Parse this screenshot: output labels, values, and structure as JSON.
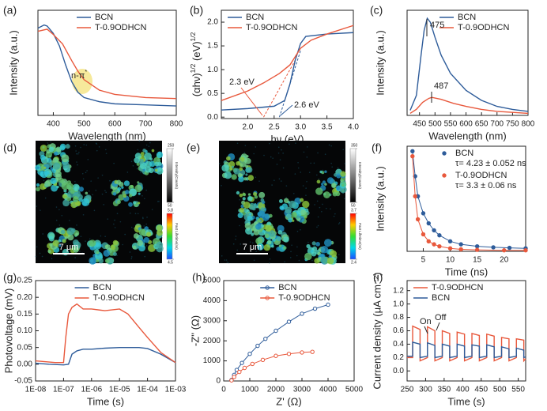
{
  "chart_data": [
    {
      "type": "line",
      "label": "(a)",
      "x_label": "Wavelength (nm)",
      "y_label": "Intensity (a.u.)",
      "xlim": [
        350,
        800
      ],
      "ylim": [
        0,
        1
      ],
      "xticks": [
        400,
        500,
        600,
        700,
        800
      ],
      "legend": "upper center",
      "highlight_color": "#f3e27a",
      "series": [
        {
          "name": "BCN",
          "color": "#2e5c9a",
          "x": [
            350,
            370,
            380,
            400,
            420,
            440,
            460,
            480,
            500,
            550,
            600,
            700,
            800
          ],
          "values": [
            0.83,
            0.86,
            0.85,
            0.78,
            0.66,
            0.48,
            0.32,
            0.22,
            0.17,
            0.13,
            0.11,
            0.1,
            0.09
          ]
        },
        {
          "name": "T-0.9ODHCN",
          "color": "#e8583c",
          "x": [
            350,
            380,
            400,
            430,
            460,
            480,
            500,
            550,
            600,
            700,
            800
          ],
          "values": [
            0.8,
            0.82,
            0.77,
            0.68,
            0.52,
            0.42,
            0.34,
            0.24,
            0.2,
            0.17,
            0.16
          ]
        }
      ],
      "annotations": [
        {
          "text": [
            "n-π",
            "*"
          ],
          "color": "#222222"
        }
      ]
    },
    {
      "type": "line",
      "label": "(b)",
      "x_label": "hν (eV)",
      "y_label": [
        "(αhν)",
        "1/2",
        " (eV)",
        "1/2"
      ],
      "xlim": [
        1.5,
        4.0
      ],
      "ylim": [
        -0.03,
        2.25
      ],
      "xticks": [
        {
          "value": 2,
          "label": "2.0"
        },
        2.5,
        {
          "value": 3,
          "label": "3.0"
        },
        3.5,
        {
          "value": 4,
          "label": "4.0"
        }
      ],
      "yticks": [
        {
          "value": 0,
          "label": "0.0"
        },
        0.5,
        {
          "value": 1,
          "label": "1.0"
        },
        1.5,
        {
          "value": 2,
          "label": "2.0"
        }
      ],
      "legend": "upper left",
      "series": [
        {
          "name": "BCN",
          "color": "#2e5c9a",
          "x": [
            1.5,
            2.0,
            2.5,
            2.7,
            2.8,
            2.9,
            3.0,
            3.1,
            3.5,
            4.0
          ],
          "values": [
            0.15,
            0.18,
            0.23,
            0.35,
            0.7,
            1.2,
            1.55,
            1.7,
            1.75,
            1.78
          ]
        },
        {
          "name": "T-0.9ODHCN",
          "color": "#e8583c",
          "x": [
            1.5,
            2.0,
            2.3,
            2.6,
            2.8,
            3.0,
            3.2,
            3.5,
            4.0
          ],
          "values": [
            0.35,
            0.55,
            0.72,
            0.92,
            1.1,
            1.45,
            1.62,
            1.75,
            1.93
          ]
        }
      ],
      "guides": [
        {
          "color": "#e8583c",
          "x": [
            2.3,
            2.9
          ],
          "values": [
            0,
            1.2
          ]
        },
        {
          "color": "#2e5c9a",
          "x": [
            2.6,
            3.0
          ],
          "values": [
            0,
            1.4
          ]
        }
      ],
      "annotations": [
        {
          "text": "2.3 eV",
          "color": "#e8583c"
        },
        {
          "text": "2.6 eV",
          "color": "#2e5c9a"
        }
      ]
    },
    {
      "type": "line",
      "label": "(c)",
      "x_label": "Wavelength (nm)",
      "y_label": "Intensity (a.u.)",
      "xlim": [
        410,
        800
      ],
      "ylim": [
        0,
        1.05
      ],
      "xticks": [
        450,
        500,
        550,
        600,
        650,
        700,
        750,
        800
      ],
      "legend": "upper right",
      "series": [
        {
          "name": "BCN",
          "color": "#2e5c9a",
          "x": [
            420,
            440,
            455,
            465,
            475,
            485,
            500,
            520,
            550,
            600,
            650,
            700,
            750,
            800
          ],
          "values": [
            0.05,
            0.2,
            0.6,
            0.85,
            0.97,
            0.93,
            0.78,
            0.6,
            0.42,
            0.25,
            0.15,
            0.09,
            0.06,
            0.04
          ]
        },
        {
          "name": "T-0.9ODHCN",
          "color": "#e8583c",
          "x": [
            420,
            440,
            460,
            480,
            490,
            520,
            560,
            600,
            650,
            700,
            800
          ],
          "values": [
            0.02,
            0.06,
            0.13,
            0.17,
            0.18,
            0.16,
            0.12,
            0.09,
            0.06,
            0.04,
            0.02
          ]
        }
      ],
      "annotations": [
        {
          "text": "475",
          "color": "#222222"
        },
        {
          "text": "487",
          "color": "#222222"
        }
      ]
    },
    {
      "type": "image",
      "label": "(d)",
      "scale_bar": "7 μm",
      "intensity_title": "Intensity(Counts)",
      "intensity_ticks": [
        250,
        50
      ],
      "lifetime_title": "Fast Lifetime(ns)",
      "lifetime_ticks": [
        5.8,
        4.5
      ]
    },
    {
      "type": "image",
      "label": "(e)",
      "scale_bar": "7 μm",
      "intensity_title": "Intensity(Counts)",
      "intensity_ticks": [
        350,
        50
      ],
      "lifetime_title": "Fast Lifetime(ns)",
      "lifetime_ticks": [
        3.7,
        2.4
      ]
    },
    {
      "type": "scatter",
      "label": "(f)",
      "x_label": "Time (ns)",
      "y_label": "Intensity (a.u.)",
      "xlim": [
        2,
        24
      ],
      "ylim": [
        0,
        1.05
      ],
      "xticks": [
        5,
        10,
        15,
        20
      ],
      "legend": "upper right",
      "markers": true,
      "series": [
        {
          "name": "BCN",
          "note": "τ= 4.23 ± 0.052 ns",
          "color": "#2e5c9a",
          "x": [
            3,
            3.5,
            4,
            5,
            6,
            7,
            8,
            10,
            12,
            15,
            18,
            21,
            24
          ],
          "values": [
            1.0,
            0.75,
            0.55,
            0.38,
            0.28,
            0.21,
            0.16,
            0.1,
            0.07,
            0.05,
            0.04,
            0.035,
            0.03
          ]
        },
        {
          "name": "T-0.9ODHCN",
          "note": "τ= 3.3 ± 0.06 ns",
          "color": "#e8583c",
          "x": [
            3,
            3.5,
            4,
            5,
            6,
            7,
            8,
            10,
            12,
            15,
            20,
            24
          ],
          "values": [
            0.95,
            0.55,
            0.32,
            0.17,
            0.1,
            0.07,
            0.05,
            0.03,
            0.02,
            0.015,
            0.01,
            0.01
          ]
        }
      ]
    },
    {
      "type": "line",
      "label": "(g)",
      "x_label": "Time (s)",
      "y_label": "Photovoltage (mV)",
      "xlog": true,
      "xlim": [
        1e-08,
        0.001
      ],
      "ylim": [
        -0.05,
        0.25
      ],
      "xticks": [
        {
          "value": 1e-08,
          "label": "1E-08"
        },
        {
          "value": 1e-07,
          "label": "1E-07"
        },
        {
          "value": 1e-06,
          "label": "1E-06"
        },
        {
          "value": 1e-05,
          "label": "1E-05"
        },
        {
          "value": 0.0001,
          "label": "1E-04"
        },
        {
          "value": 0.001,
          "label": "1E-03"
        }
      ],
      "yticks": [
        -0.05,
        {
          "value": 0,
          "label": "0.00"
        },
        0.05,
        {
          "value": 0.1,
          "label": "0.10"
        },
        0.15,
        {
          "value": 0.2,
          "label": "0.20"
        },
        0.25
      ],
      "legend": "upper center",
      "series": [
        {
          "name": "BCN",
          "color": "#2e5c9a",
          "x": [
            1e-08,
            3e-08,
            1e-07,
            1.5e-07,
            2e-07,
            3e-07,
            5e-07,
            1e-06,
            3e-06,
            1e-05,
            5e-05,
            0.0001,
            0.0003,
            0.001
          ],
          "values": [
            0.003,
            0.0,
            -0.002,
            0.0,
            0.03,
            0.04,
            0.045,
            0.045,
            0.048,
            0.05,
            0.05,
            0.047,
            0.03,
            0.005
          ]
        },
        {
          "name": "T-0.9ODHCN",
          "color": "#e8583c",
          "x": [
            1e-08,
            5e-08,
            1e-07,
            1.2e-07,
            1.5e-07,
            2e-07,
            3e-07,
            5e-07,
            1e-06,
            3e-06,
            1e-05,
            2e-05,
            5e-05,
            0.0001,
            0.0003,
            0.001
          ],
          "values": [
            0.01,
            0.005,
            0.005,
            0.08,
            0.15,
            0.17,
            0.18,
            0.165,
            0.165,
            0.16,
            0.165,
            0.15,
            0.11,
            0.08,
            0.035,
            0.005
          ]
        }
      ]
    },
    {
      "type": "scatter",
      "label": "(h)",
      "x_label": "Z' (Ω)",
      "y_label": "-Z'' (Ω)",
      "xlim": [
        0,
        5000
      ],
      "ylim": [
        0,
        5000
      ],
      "xticks": [
        0,
        1000,
        2000,
        3000,
        4000,
        5000
      ],
      "yticks": [
        0,
        1000,
        2000,
        3000,
        4000,
        5000
      ],
      "legend": "upper center",
      "markers": true,
      "series": [
        {
          "name": "BCN",
          "color": "#2e5c9a",
          "x": [
            300,
            400,
            500,
            700,
            1000,
            1300,
            1600,
            2000,
            2500,
            3000,
            3500,
            4000
          ],
          "values": [
            50,
            300,
            550,
            900,
            1350,
            1750,
            2100,
            2500,
            2950,
            3350,
            3600,
            3800
          ]
        },
        {
          "name": "T-0.9ODHCN",
          "color": "#e8583c",
          "x": [
            300,
            400,
            600,
            800,
            1100,
            1500,
            2000,
            2500,
            3000,
            3400
          ],
          "values": [
            30,
            200,
            450,
            650,
            850,
            1050,
            1250,
            1350,
            1420,
            1450
          ]
        }
      ]
    },
    {
      "type": "line",
      "label": "(i)",
      "x_label": "Time (s)",
      "y_label": "Current density (μA cm⁻²)",
      "xlim": [
        250,
        570
      ],
      "ylim": [
        -0.15,
        1.35
      ],
      "xticks": [
        250,
        300,
        350,
        400,
        450,
        500,
        550
      ],
      "yticks": [
        {
          "value": 0,
          "label": "0.0"
        },
        0.2,
        0.4,
        0.6,
        0.8,
        {
          "value": 1,
          "label": "1.0"
        },
        1.2
      ],
      "legend": "upper left",
      "series": [
        {
          "name": "T-0.9ODHCN",
          "color": "#e8583c",
          "x": [
            250,
            265,
            265,
            285,
            285,
            305,
            305,
            325,
            325,
            345,
            345,
            365,
            365,
            385,
            385,
            405,
            405,
            425,
            425,
            445,
            445,
            465,
            465,
            485,
            485,
            505,
            505,
            525,
            525,
            545,
            545,
            565,
            565,
            570
          ],
          "values": [
            0.2,
            0.2,
            0.67,
            0.62,
            0.15,
            0.2,
            0.66,
            0.6,
            0.15,
            0.2,
            0.6,
            0.56,
            0.15,
            0.2,
            0.58,
            0.55,
            0.15,
            0.2,
            0.56,
            0.53,
            0.15,
            0.2,
            0.55,
            0.52,
            0.15,
            0.2,
            0.5,
            0.48,
            0.15,
            0.2,
            0.48,
            0.46,
            0.15,
            0.18
          ]
        },
        {
          "name": "BCN",
          "color": "#2e5c9a",
          "x": [
            250,
            265,
            265,
            285,
            285,
            305,
            305,
            325,
            325,
            345,
            345,
            365,
            365,
            385,
            385,
            405,
            405,
            425,
            425,
            445,
            445,
            465,
            465,
            485,
            485,
            505,
            505,
            525,
            525,
            545,
            545,
            565,
            565,
            570
          ],
          "values": [
            0.22,
            0.22,
            0.43,
            0.4,
            0.2,
            0.22,
            0.42,
            0.38,
            0.2,
            0.22,
            0.4,
            0.37,
            0.2,
            0.22,
            0.4,
            0.37,
            0.2,
            0.22,
            0.39,
            0.37,
            0.2,
            0.22,
            0.39,
            0.36,
            0.2,
            0.22,
            0.36,
            0.33,
            0.2,
            0.22,
            0.34,
            0.31,
            0.2,
            0.21
          ]
        }
      ],
      "annotations": [
        {
          "text": "On",
          "color": "#222222"
        },
        {
          "text": "Off",
          "color": "#222222"
        }
      ]
    }
  ]
}
